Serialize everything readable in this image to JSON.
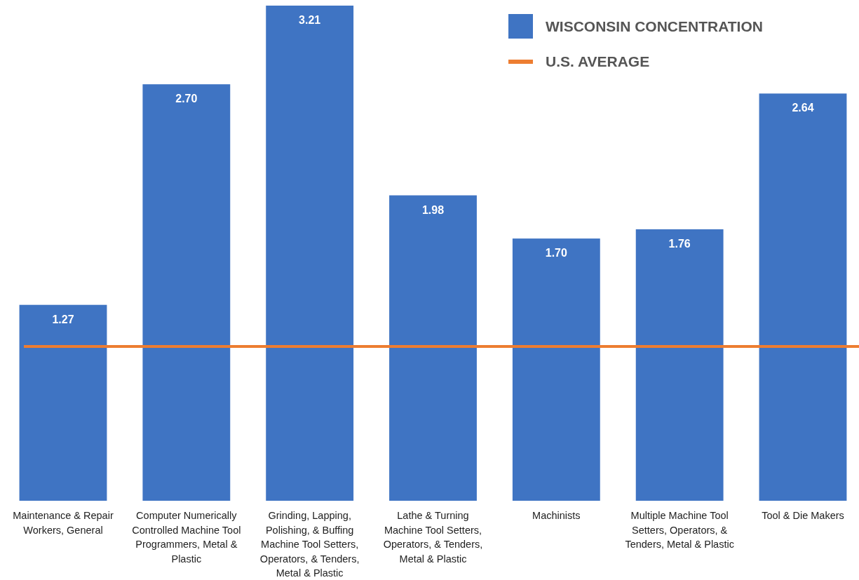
{
  "chart_data": {
    "type": "bar",
    "categories": [
      "Maintenance & Repair Workers, General",
      "Computer Numerically Controlled Machine Tool Programmers, Metal & Plastic",
      "Grinding, Lapping, Polishing, & Buffing Machine Tool Setters, Operators, & Tenders, Metal & Plastic",
      "Lathe & Turning Machine Tool Setters, Operators, & Tenders, Metal & Plastic",
      "Machinists",
      "Multiple Machine Tool Setters, Operators, & Tenders, Metal & Plastic",
      "Tool & Die Makers"
    ],
    "series": [
      {
        "name": "WISCONSIN CONCENTRATION",
        "color": "#3f74c3",
        "values": [
          1.27,
          2.7,
          3.21,
          1.98,
          1.7,
          1.76,
          2.64
        ],
        "value_labels": [
          "1.27",
          "2.70",
          "3.21",
          "1.98",
          "1.70",
          "1.76",
          "2.64"
        ]
      }
    ],
    "ylim": [
      0,
      3.21
    ],
    "legend": "top right",
    "ref_lines": [
      {
        "axis": "y",
        "value": 1,
        "label": "U.S. AVERAGE",
        "color": "#ed7d31"
      }
    ]
  }
}
